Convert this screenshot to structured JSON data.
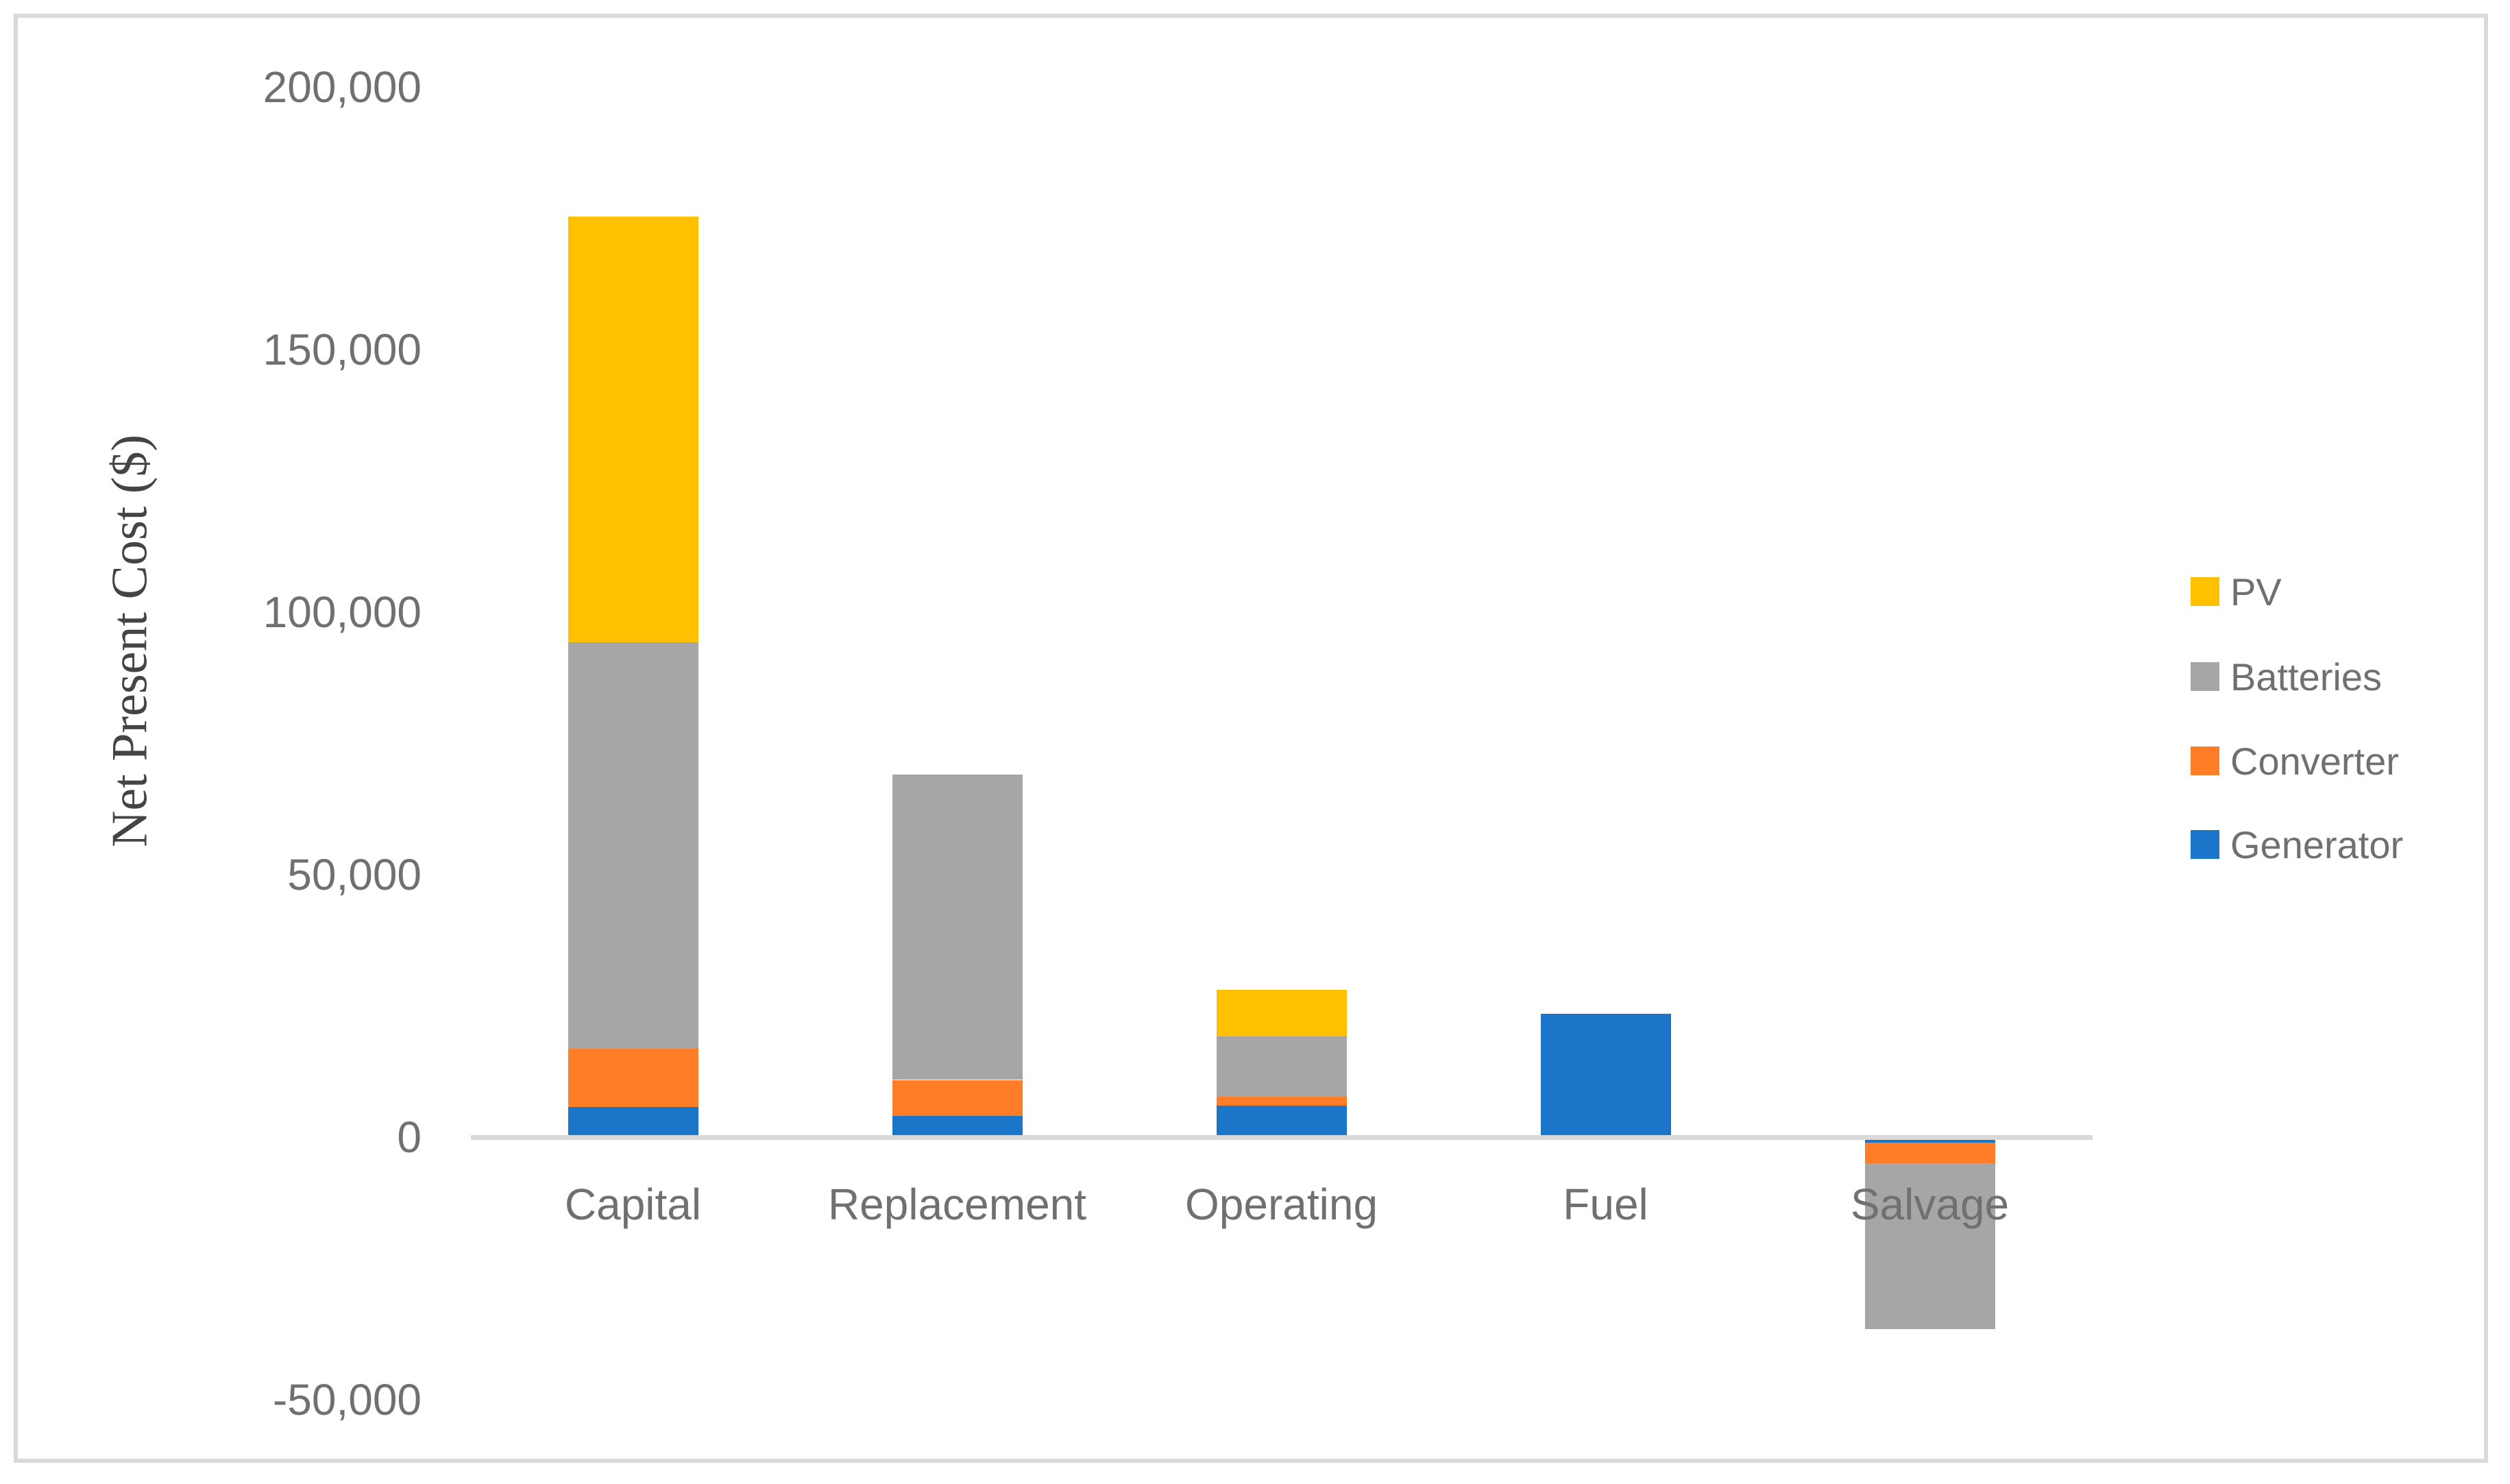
{
  "chart": {
    "y_axis_title": "Net Present Cost ($)",
    "frame_color": "#d9d9d9",
    "axis_line_color": "#d9d9d9",
    "tick_text_color": "#707070",
    "axis_title_color": "#444444",
    "background_color": "#ffffff"
  },
  "chart_data": {
    "type": "bar",
    "stacked": true,
    "title": "",
    "xlabel": "",
    "ylabel": "Net Present Cost ($)",
    "categories": [
      "Capital",
      "Replacement",
      "Operating",
      "Fuel",
      "Salvage"
    ],
    "series": [
      {
        "name": "PV",
        "color": "#FFC000",
        "values": [
          81100,
          0,
          8900,
          0,
          0
        ]
      },
      {
        "name": "Batteries",
        "color": "#A6A6A6",
        "values": [
          77300,
          58200,
          11500,
          0,
          -31500
        ]
      },
      {
        "name": "Converter",
        "color": "#FF7D27",
        "values": [
          11200,
          6900,
          1700,
          0,
          -4000
        ]
      },
      {
        "name": "Generator",
        "color": "#1B75C8",
        "values": [
          5700,
          4000,
          6000,
          23500,
          -1000
        ]
      }
    ],
    "category_totals": [
      175300,
      69100,
      28100,
      23500,
      -36500
    ],
    "ylim": [
      -50000,
      200000
    ],
    "ytick_step": 50000,
    "ytick_labels": [
      "200,000",
      "150,000",
      "100,000",
      "50,000",
      "0",
      "-50,000"
    ],
    "grid": false,
    "legend_position": "right"
  }
}
